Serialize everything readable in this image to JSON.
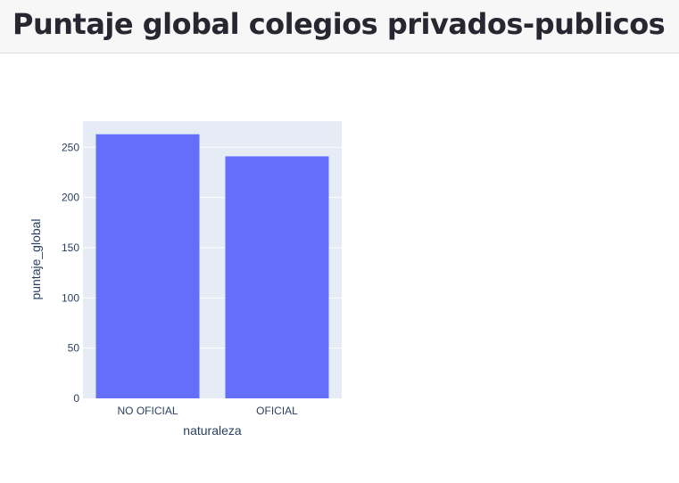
{
  "header": {
    "title": "Puntaje global colegios privados-publicos"
  },
  "chart_data": {
    "type": "bar",
    "title": "",
    "categories": [
      "NO OFICIAL",
      "OFICIAL"
    ],
    "values": [
      263,
      241
    ],
    "xlabel": "naturaleza",
    "ylabel": "puntaje_global",
    "ylim": [
      0,
      276
    ],
    "yticks": [
      0,
      50,
      100,
      150,
      200,
      250
    ],
    "grid": true,
    "bar_color": "#636efa",
    "plot_bg": "#e5ecf6"
  }
}
